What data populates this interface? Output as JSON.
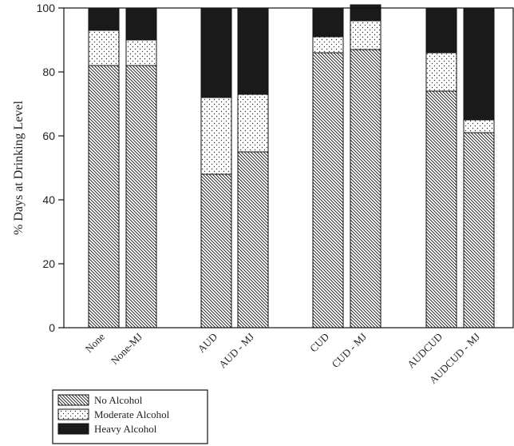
{
  "chart_data": {
    "type": "bar",
    "stacked": true,
    "ylabel": "% Days at Drinking Level",
    "xlabel": "",
    "ylim": [
      0,
      100
    ],
    "yticks": [
      0,
      20,
      40,
      60,
      80,
      100
    ],
    "grid": false,
    "legend_position": "bottom-left",
    "categories": [
      "None",
      "None-MJ",
      "AUD",
      "AUD - MJ",
      "CUD",
      "CUD - MJ",
      "AUDCUD",
      "AUDCUD - MJ"
    ],
    "series": [
      {
        "name": "No Alcohol",
        "pattern": "diagonal-hatch",
        "values": [
          82,
          82,
          48,
          55,
          86,
          87,
          74,
          61
        ]
      },
      {
        "name": "Moderate Alcohol",
        "pattern": "dots",
        "values": [
          11,
          8,
          24,
          18,
          5,
          9,
          12,
          4
        ]
      },
      {
        "name": "Heavy Alcohol",
        "pattern": "solid",
        "color": "#1a1a1a",
        "values": [
          7,
          10,
          28,
          27,
          9,
          5,
          14,
          35
        ]
      }
    ]
  }
}
